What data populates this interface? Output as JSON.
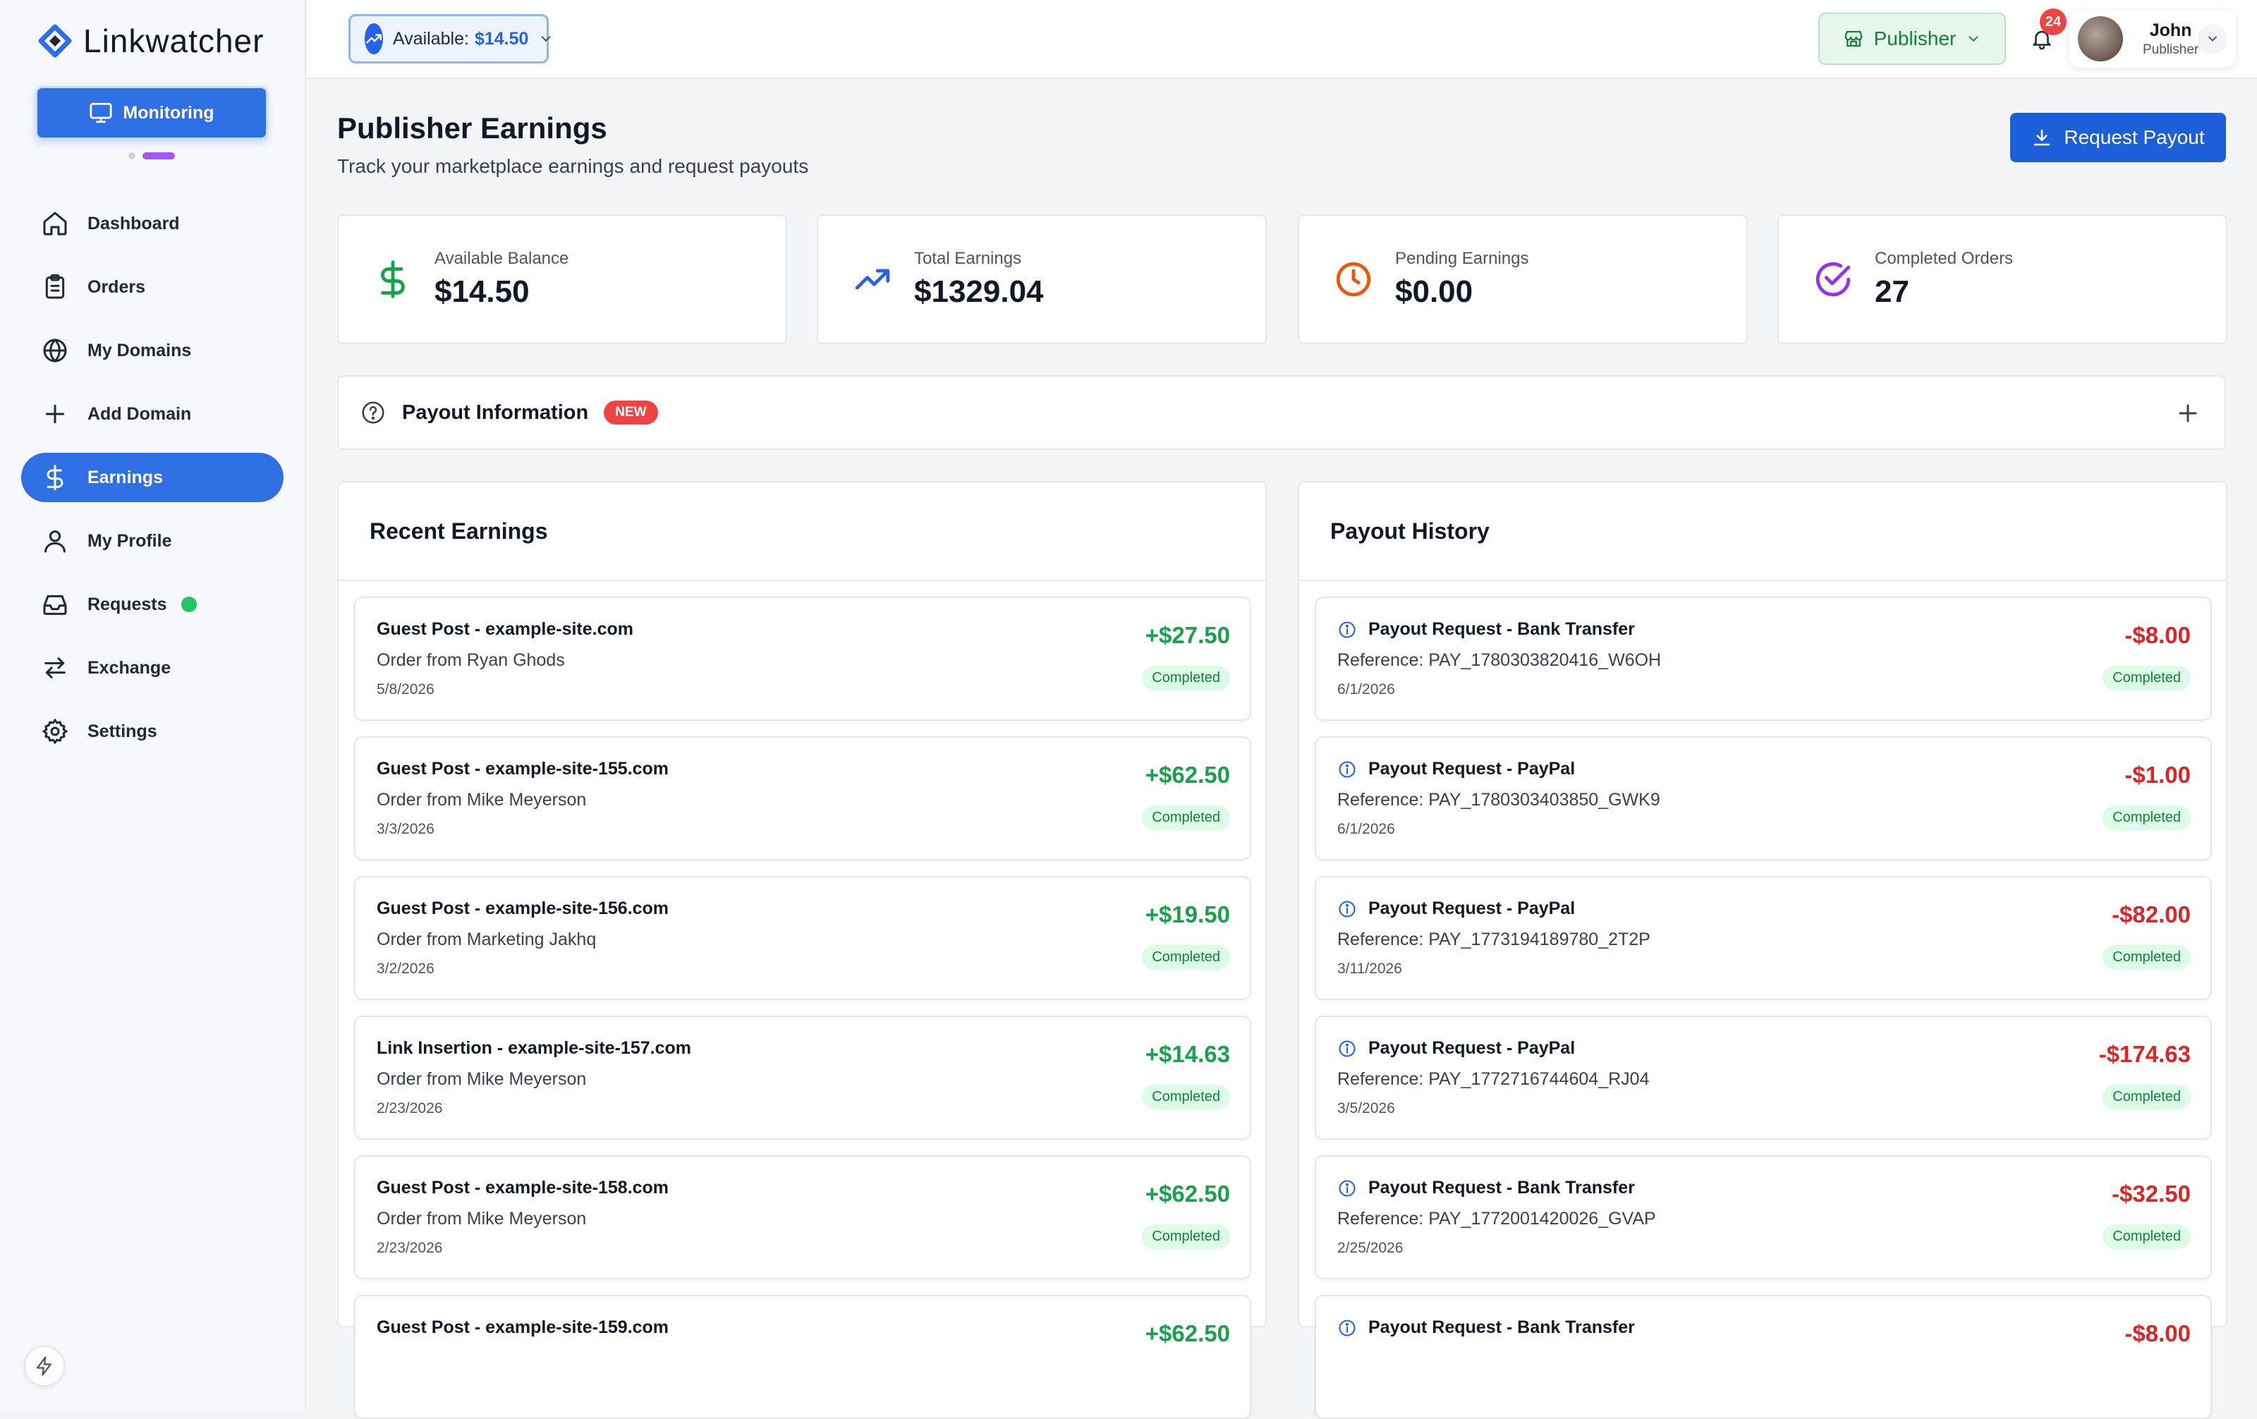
{
  "app": {
    "name": "Linkwatcher"
  },
  "sidebar": {
    "monitor_label": "Monitoring",
    "items": [
      {
        "label": "Dashboard",
        "icon": "home-icon"
      },
      {
        "label": "Orders",
        "icon": "clipboard-icon"
      },
      {
        "label": "My Domains",
        "icon": "globe-icon"
      },
      {
        "label": "Add Domain",
        "icon": "plus-icon"
      },
      {
        "label": "Earnings",
        "icon": "dollar-icon",
        "active": true
      },
      {
        "label": "My Profile",
        "icon": "user-icon"
      },
      {
        "label": "Requests",
        "icon": "inbox-icon"
      },
      {
        "label": "Exchange",
        "icon": "arrows-icon"
      },
      {
        "label": "Settings",
        "icon": "gear-icon"
      }
    ]
  },
  "topbar": {
    "available_label": "Available:",
    "available_value": "$14.50",
    "role_label": "Publisher",
    "notifications": "24",
    "user_name": "John",
    "user_role": "Publisher"
  },
  "page": {
    "title": "Publisher Earnings",
    "subtitle": "Track your marketplace earnings and request payouts",
    "request_payout": "Request Payout"
  },
  "stats": [
    {
      "label": "Available Balance",
      "value": "$14.50",
      "icon": "dollar-icon",
      "color": "#16a34a"
    },
    {
      "label": "Total Earnings",
      "value": "$1329.04",
      "icon": "trending-up-icon",
      "color": "#2563eb"
    },
    {
      "label": "Pending Earnings",
      "value": "$0.00",
      "icon": "clock-icon",
      "color": "#ea580c"
    },
    {
      "label": "Completed Orders",
      "value": "27",
      "icon": "check-circle-icon",
      "color": "#9333ea"
    }
  ],
  "payout_info": {
    "label": "Payout Information",
    "badge": "NEW"
  },
  "recent_earnings": {
    "title": "Recent Earnings",
    "items": [
      {
        "title": "Guest Post - example-site.com",
        "sub": "Order from Ryan Ghods",
        "date": "5/8/2026",
        "amount": "+$27.50",
        "status": "Completed"
      },
      {
        "title": "Guest Post - example-site-155.com",
        "sub": "Order from Mike Meyerson",
        "date": "3/3/2026",
        "amount": "+$62.50",
        "status": "Completed"
      },
      {
        "title": "Guest Post - example-site-156.com",
        "sub": "Order from Marketing Jakhq",
        "date": "3/2/2026",
        "amount": "+$19.50",
        "status": "Completed"
      },
      {
        "title": "Link Insertion - example-site-157.com",
        "sub": "Order from Mike Meyerson",
        "date": "2/23/2026",
        "amount": "+$14.63",
        "status": "Completed"
      },
      {
        "title": "Guest Post - example-site-158.com",
        "sub": "Order from Mike Meyerson",
        "date": "2/23/2026",
        "amount": "+$62.50",
        "status": "Completed"
      },
      {
        "title": "Guest Post - example-site-159.com",
        "sub": "",
        "date": "",
        "amount": "+$62.50",
        "status": ""
      }
    ]
  },
  "payout_history": {
    "title": "Payout History",
    "items": [
      {
        "title": "Payout Request - Bank Transfer",
        "sub": "Reference: PAY_1780303820416_W6OH",
        "date": "6/1/2026",
        "amount": "-$8.00",
        "status": "Completed"
      },
      {
        "title": "Payout Request - PayPal",
        "sub": "Reference: PAY_1780303403850_GWK9",
        "date": "6/1/2026",
        "amount": "-$1.00",
        "status": "Completed"
      },
      {
        "title": "Payout Request - PayPal",
        "sub": "Reference: PAY_1773194189780_2T2P",
        "date": "3/11/2026",
        "amount": "-$82.00",
        "status": "Completed"
      },
      {
        "title": "Payout Request - PayPal",
        "sub": "Reference: PAY_1772716744604_RJ04",
        "date": "3/5/2026",
        "amount": "-$174.63",
        "status": "Completed"
      },
      {
        "title": "Payout Request - Bank Transfer",
        "sub": "Reference: PAY_1772001420026_GVAP",
        "date": "2/25/2026",
        "amount": "-$32.50",
        "status": "Completed"
      },
      {
        "title": "Payout Request - Bank Transfer",
        "sub": "",
        "date": "",
        "amount": "-$8.00",
        "status": ""
      }
    ]
  }
}
